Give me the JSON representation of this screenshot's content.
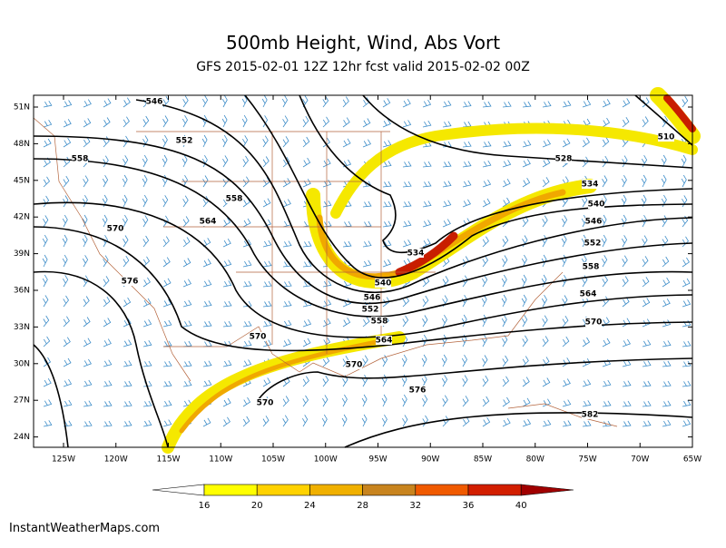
{
  "header": {
    "title": "500mb Height, Wind, Abs Vort",
    "subtitle": "GFS 2015-02-01 12Z 12hr fcst valid 2015-02-02 00Z"
  },
  "map": {
    "lat_labels": [
      "51N",
      "48N",
      "45N",
      "42N",
      "39N",
      "36N",
      "33N",
      "30N",
      "27N",
      "24N"
    ],
    "lon_labels": [
      "125W",
      "120W",
      "115W",
      "110W",
      "105W",
      "100W",
      "95W",
      "90W",
      "85W",
      "80W",
      "75W",
      "70W",
      "65W"
    ],
    "contour_labels": [
      546,
      552,
      558,
      558,
      564,
      570,
      576,
      570,
      570,
      534,
      540,
      546,
      552,
      558,
      564,
      570,
      576,
      582,
      570,
      564,
      558,
      552,
      546,
      540,
      534,
      528,
      510
    ]
  },
  "colorbar": {
    "labels": [
      16,
      20,
      24,
      28,
      32,
      36,
      40
    ]
  },
  "footer": {
    "credit": "InstantWeatherMaps.com"
  }
}
